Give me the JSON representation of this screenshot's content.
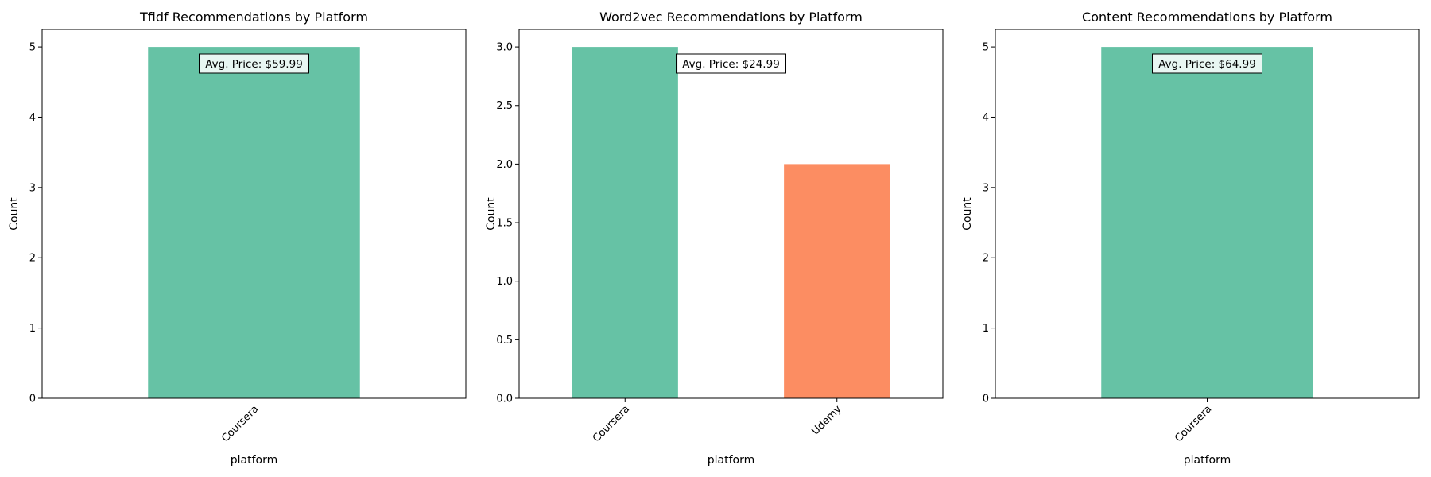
{
  "chart_data": [
    {
      "type": "bar",
      "title": "Tfidf Recommendations by Platform",
      "xlabel": "platform",
      "ylabel": "Count",
      "categories": [
        "Coursera"
      ],
      "values": [
        5
      ],
      "colors": [
        "#66c2a5"
      ],
      "ylim": [
        0,
        5.25
      ],
      "yticks": [
        0,
        1,
        2,
        3,
        4,
        5
      ],
      "ytick_labels": [
        "0",
        "1",
        "2",
        "3",
        "4",
        "5"
      ],
      "annotation": "Avg. Price: $59.99",
      "grid": false
    },
    {
      "type": "bar",
      "title": "Word2vec Recommendations by Platform",
      "xlabel": "platform",
      "ylabel": "Count",
      "categories": [
        "Coursera",
        "Udemy"
      ],
      "values": [
        3,
        2
      ],
      "colors": [
        "#66c2a5",
        "#fc8d62"
      ],
      "ylim": [
        0,
        3.15
      ],
      "yticks": [
        0,
        0.5,
        1,
        1.5,
        2,
        2.5,
        3
      ],
      "ytick_labels": [
        "0.0",
        "0.5",
        "1.0",
        "1.5",
        "2.0",
        "2.5",
        "3.0"
      ],
      "annotation": "Avg. Price: $24.99",
      "grid": false
    },
    {
      "type": "bar",
      "title": "Content Recommendations by Platform",
      "xlabel": "platform",
      "ylabel": "Count",
      "categories": [
        "Coursera"
      ],
      "values": [
        5
      ],
      "colors": [
        "#66c2a5"
      ],
      "ylim": [
        0,
        5.25
      ],
      "yticks": [
        0,
        1,
        2,
        3,
        4,
        5
      ],
      "ytick_labels": [
        "0",
        "1",
        "2",
        "3",
        "4",
        "5"
      ],
      "annotation": "Avg. Price: $64.99",
      "grid": false
    }
  ]
}
